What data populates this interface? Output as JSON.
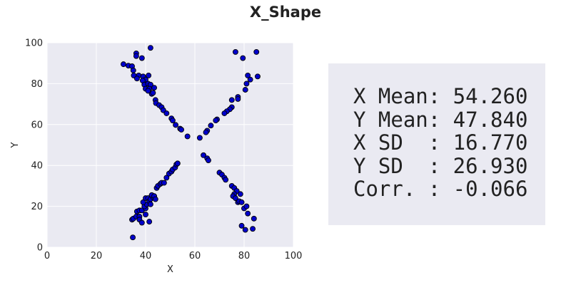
{
  "chart_data": {
    "type": "scatter",
    "title": "X_Shape",
    "xlabel": "X",
    "ylabel": "Y",
    "xlim": [
      0,
      100
    ],
    "ylim": [
      0,
      100
    ],
    "xticks": [
      "0",
      "20",
      "40",
      "60",
      "80",
      "100"
    ],
    "yticks": [
      "0",
      "20",
      "40",
      "60",
      "80",
      "100"
    ],
    "grid": true,
    "legend": "none",
    "point_color": "#0000cc",
    "point_edge_color": "#000000",
    "plot_background": "#eaeaf2",
    "points": [
      [
        42,
        97.5
      ],
      [
        36.2,
        94.8
      ],
      [
        36.2,
        93.5
      ],
      [
        38.5,
        92.5
      ],
      [
        31,
        89.5
      ],
      [
        33,
        88.8
      ],
      [
        34.5,
        88.5
      ],
      [
        35,
        86.5
      ],
      [
        35.2,
        84
      ],
      [
        37.2,
        84
      ],
      [
        39,
        83.5
      ],
      [
        41.2,
        84
      ],
      [
        40,
        82
      ],
      [
        36.5,
        82.5
      ],
      [
        38.8,
        81.5
      ],
      [
        39.5,
        79.5
      ],
      [
        41,
        80
      ],
      [
        42,
        79.5
      ],
      [
        40,
        77.5
      ],
      [
        41.5,
        77.5
      ],
      [
        43.5,
        78
      ],
      [
        42.5,
        75
      ],
      [
        43,
        75.5
      ],
      [
        41,
        76.5
      ],
      [
        44,
        72
      ],
      [
        44.2,
        70.5
      ],
      [
        45.5,
        69.5
      ],
      [
        46.5,
        68.5
      ],
      [
        47.2,
        67
      ],
      [
        48.5,
        65.5
      ],
      [
        50.5,
        63
      ],
      [
        51,
        62
      ],
      [
        52.2,
        59.8
      ],
      [
        54,
        58
      ],
      [
        54.5,
        57.5
      ],
      [
        57,
        54.2
      ],
      [
        85,
        95.5
      ],
      [
        76.5,
        95.5
      ],
      [
        79.5,
        92.5
      ],
      [
        81.5,
        84
      ],
      [
        82.5,
        82
      ],
      [
        85.5,
        83.5
      ],
      [
        81,
        80
      ],
      [
        80.5,
        77
      ],
      [
        77.5,
        73.5
      ],
      [
        77.5,
        72.5
      ],
      [
        75,
        72
      ],
      [
        75,
        68.5
      ],
      [
        74.2,
        67.5
      ],
      [
        73,
        66.5
      ],
      [
        72,
        65.5
      ],
      [
        69,
        62.5
      ],
      [
        68.5,
        62
      ],
      [
        66.5,
        59.5
      ],
      [
        65,
        57
      ],
      [
        64.5,
        56.2
      ],
      [
        62,
        53.5
      ],
      [
        34.8,
        4.8
      ],
      [
        34.5,
        13.5
      ],
      [
        35,
        14
      ],
      [
        36.2,
        15
      ],
      [
        37.5,
        15
      ],
      [
        36.5,
        17.5
      ],
      [
        37.5,
        18
      ],
      [
        38.5,
        18
      ],
      [
        37.5,
        13.5
      ],
      [
        38.5,
        12
      ],
      [
        40,
        16
      ],
      [
        41.5,
        12.5
      ],
      [
        40,
        19
      ],
      [
        39.5,
        20
      ],
      [
        40.5,
        21
      ],
      [
        39,
        22
      ],
      [
        40,
        24
      ],
      [
        41,
        24
      ],
      [
        41.5,
        22.5
      ],
      [
        42,
        21
      ],
      [
        42,
        23.5
      ],
      [
        43,
        24.5
      ],
      [
        42.5,
        25.5
      ],
      [
        43.5,
        25
      ],
      [
        44,
        23.5
      ],
      [
        44.5,
        29
      ],
      [
        45,
        30
      ],
      [
        46,
        31
      ],
      [
        46.5,
        31.5
      ],
      [
        47.5,
        31.5
      ],
      [
        48.5,
        34
      ],
      [
        49.5,
        36
      ],
      [
        50.5,
        37
      ],
      [
        51,
        38
      ],
      [
        52,
        39
      ],
      [
        52.5,
        40.5
      ],
      [
        53,
        41
      ],
      [
        63.5,
        45
      ],
      [
        65,
        43.5
      ],
      [
        65.5,
        42.5
      ],
      [
        70,
        36.5
      ],
      [
        71,
        35.5
      ],
      [
        72,
        34
      ],
      [
        72.5,
        33
      ],
      [
        75,
        30
      ],
      [
        76,
        29
      ],
      [
        77,
        27.5
      ],
      [
        76,
        26
      ],
      [
        78.5,
        26
      ],
      [
        75.5,
        25
      ],
      [
        76.5,
        24
      ],
      [
        77.5,
        22
      ],
      [
        78,
        22.5
      ],
      [
        79,
        22
      ],
      [
        80,
        19
      ],
      [
        81,
        20
      ],
      [
        81.5,
        16.5
      ],
      [
        84,
        14
      ],
      [
        79,
        10.5
      ],
      [
        80.5,
        8.5
      ],
      [
        83.5,
        9
      ]
    ]
  },
  "stats": {
    "lines": [
      "X Mean: 54.260",
      "Y Mean: 47.840",
      "X SD  : 16.770",
      "Y SD  : 26.930",
      "Corr. : -0.066"
    ]
  }
}
